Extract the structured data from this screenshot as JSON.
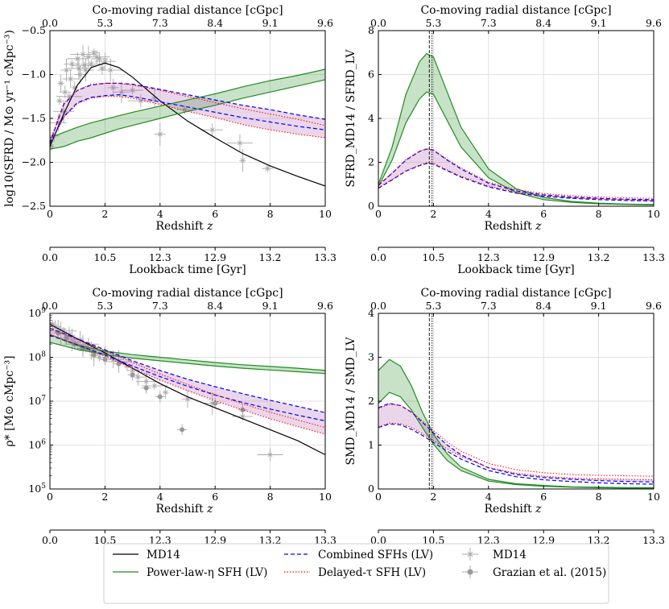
{
  "axes_common": {
    "top_label": "Co-moving radial distance [cGpc]",
    "top_ticks": [
      "0.0",
      "5.3",
      "7.3",
      "8.4",
      "9.1",
      "9.6"
    ],
    "xlabel": "Redshift z",
    "bottom_label": "Lookback time [Gyr]",
    "bottom_ticks": [
      "0.0",
      "10.5",
      "12.3",
      "12.9",
      "13.2",
      "13.3"
    ],
    "x_ticks": [
      "0",
      "2",
      "4",
      "6",
      "8",
      "10"
    ]
  },
  "legend": {
    "items": [
      {
        "label": "MD14",
        "style": "line",
        "color": "#000000"
      },
      {
        "label": "Power-law-η SFH (LV)",
        "style": "line",
        "color": "#228b22"
      },
      {
        "label": "Combined SFHs (LV)",
        "style": "dashed",
        "color": "#0000ff"
      },
      {
        "label": "Delayed-τ SFH (LV)",
        "style": "dotted",
        "color": "#ff0000"
      },
      {
        "label": "MD14",
        "style": "errorbar-x",
        "color": "#aaaaaa"
      },
      {
        "label": "Grazian et al. (2015)",
        "style": "errorbar-dot",
        "color": "#aaaaaa"
      }
    ]
  },
  "chart_data": [
    {
      "id": "sfrd",
      "type": "line",
      "ylabel": "log10(SFRD / M⊙ yr⁻¹ cMpc⁻³)",
      "xlim": [
        0,
        10
      ],
      "ylim": [
        -2.5,
        -0.5
      ],
      "y_ticks": [
        "−2.5",
        "−2.0",
        "−1.5",
        "−1.0",
        "−0.5"
      ],
      "x": [
        0,
        0.5,
        1,
        1.5,
        2,
        2.5,
        3,
        4,
        5,
        6,
        7,
        8,
        9,
        10
      ],
      "series": [
        {
          "name": "MD14",
          "values": [
            -1.82,
            -1.45,
            -1.12,
            -0.92,
            -0.87,
            -0.92,
            -1.03,
            -1.3,
            -1.53,
            -1.72,
            -1.9,
            -2.04,
            -2.16,
            -2.27
          ]
        },
        {
          "name": "Power-law-η upper",
          "values": [
            -1.72,
            -1.66,
            -1.6,
            -1.55,
            -1.51,
            -1.47,
            -1.43,
            -1.36,
            -1.29,
            -1.22,
            -1.14,
            -1.07,
            -1.01,
            -0.94
          ]
        },
        {
          "name": "Power-law-η lower",
          "values": [
            -1.85,
            -1.82,
            -1.76,
            -1.72,
            -1.67,
            -1.62,
            -1.58,
            -1.5,
            -1.42,
            -1.35,
            -1.27,
            -1.2,
            -1.13,
            -1.06
          ]
        },
        {
          "name": "Combined upper",
          "values": [
            -1.78,
            -1.34,
            -1.18,
            -1.12,
            -1.1,
            -1.1,
            -1.11,
            -1.17,
            -1.23,
            -1.29,
            -1.35,
            -1.4,
            -1.46,
            -1.51
          ]
        },
        {
          "name": "Combined lower",
          "values": [
            -1.79,
            -1.48,
            -1.32,
            -1.26,
            -1.24,
            -1.23,
            -1.25,
            -1.31,
            -1.37,
            -1.43,
            -1.49,
            -1.54,
            -1.59,
            -1.63
          ]
        },
        {
          "name": "Delayed-τ upper",
          "values": [
            -1.76,
            -1.33,
            -1.18,
            -1.11,
            -1.1,
            -1.1,
            -1.12,
            -1.18,
            -1.25,
            -1.32,
            -1.39,
            -1.45,
            -1.51,
            -1.58
          ]
        },
        {
          "name": "Delayed-τ lower",
          "values": [
            -1.8,
            -1.49,
            -1.33,
            -1.27,
            -1.25,
            -1.25,
            -1.27,
            -1.34,
            -1.42,
            -1.49,
            -1.57,
            -1.63,
            -1.68,
            -1.72
          ]
        }
      ],
      "observations_md14": [
        [
          0.05,
          -1.82
        ],
        [
          0.15,
          -1.7
        ],
        [
          0.3,
          -1.55
        ],
        [
          0.5,
          -1.42
        ],
        [
          0.7,
          -1.25
        ],
        [
          0.9,
          -1.15
        ],
        [
          1.1,
          -1.0
        ],
        [
          1.3,
          -0.95
        ],
        [
          1.5,
          -0.88
        ],
        [
          1.7,
          -0.8
        ],
        [
          0.4,
          -1.1
        ],
        [
          0.6,
          -0.95
        ],
        [
          0.8,
          -0.88
        ],
        [
          1.0,
          -0.82
        ],
        [
          1.2,
          -0.77
        ],
        [
          1.4,
          -0.8
        ],
        [
          1.6,
          -0.75
        ],
        [
          1.8,
          -0.82
        ],
        [
          2.0,
          -0.85
        ],
        [
          2.2,
          -0.95
        ],
        [
          0.35,
          -1.3
        ],
        [
          0.55,
          -1.2
        ],
        [
          0.75,
          -1.05
        ],
        [
          1.05,
          -0.93
        ],
        [
          1.25,
          -0.9
        ],
        [
          1.9,
          -0.93
        ],
        [
          2.3,
          -1.15
        ],
        [
          2.6,
          -1.2
        ],
        [
          3.0,
          -1.18
        ],
        [
          3.3,
          -1.3
        ],
        [
          3.8,
          -1.27
        ],
        [
          4.0,
          -1.68
        ],
        [
          4.9,
          -1.4
        ],
        [
          5.9,
          -1.63
        ],
        [
          6.9,
          -1.78
        ],
        [
          7.0,
          -1.98
        ],
        [
          7.9,
          -2.07
        ]
      ]
    },
    {
      "id": "sfrd-ratio",
      "type": "line",
      "ylabel": "SFRD_MD14 / SFRD_LV",
      "xlim": [
        0,
        10
      ],
      "ylim": [
        0,
        8
      ],
      "y_ticks": [
        "0",
        "2",
        "4",
        "6",
        "8"
      ],
      "vlines": [
        1.85,
        1.95
      ],
      "x": [
        0,
        0.5,
        1,
        1.5,
        1.75,
        2,
        2.5,
        3,
        4,
        5,
        6,
        7,
        8,
        9,
        10
      ],
      "series": [
        {
          "name": "Power-law-η upper",
          "values": [
            1.0,
            2.7,
            5.1,
            6.6,
            6.95,
            6.8,
            5.2,
            3.6,
            1.7,
            0.8,
            0.4,
            0.22,
            0.14,
            0.1,
            0.08
          ]
        },
        {
          "name": "Power-law-η lower",
          "values": [
            0.9,
            2.1,
            3.8,
            4.9,
            5.2,
            5.1,
            3.9,
            2.7,
            1.3,
            0.62,
            0.3,
            0.18,
            0.11,
            0.08,
            0.06
          ]
        },
        {
          "name": "Combined upper",
          "values": [
            0.95,
            1.5,
            2.1,
            2.5,
            2.6,
            2.55,
            2.1,
            1.7,
            1.05,
            0.7,
            0.52,
            0.42,
            0.36,
            0.32,
            0.3
          ]
        },
        {
          "name": "Combined lower",
          "values": [
            0.82,
            1.2,
            1.6,
            1.85,
            1.95,
            1.92,
            1.62,
            1.33,
            0.88,
            0.6,
            0.45,
            0.36,
            0.3,
            0.26,
            0.24
          ]
        },
        {
          "name": "Delayed-τ upper",
          "values": [
            0.97,
            1.52,
            2.12,
            2.52,
            2.62,
            2.57,
            2.14,
            1.75,
            1.1,
            0.76,
            0.58,
            0.48,
            0.42,
            0.38,
            0.36
          ]
        },
        {
          "name": "Delayed-τ lower",
          "values": [
            0.85,
            1.22,
            1.62,
            1.88,
            1.98,
            1.95,
            1.65,
            1.37,
            0.92,
            0.64,
            0.48,
            0.39,
            0.33,
            0.29,
            0.27
          ]
        }
      ]
    },
    {
      "id": "smd",
      "type": "line",
      "ylabel": "ρ* [M⊙ cMpc⁻³]",
      "yscale": "log",
      "xlim": [
        0,
        10
      ],
      "ylim": [
        5,
        9
      ],
      "y_ticks": [
        "10^5",
        "10^6",
        "10^7",
        "10^8",
        "10^9"
      ],
      "x": [
        0,
        1,
        2,
        3,
        4,
        5,
        6,
        7,
        8,
        9,
        10
      ],
      "series": [
        {
          "name": "MD14",
          "values": [
            8.75,
            8.42,
            8.1,
            7.75,
            7.4,
            7.1,
            6.85,
            6.6,
            6.35,
            6.1,
            5.78
          ]
        },
        {
          "name": "Power-law-η upper",
          "values": [
            8.52,
            8.28,
            8.14,
            8.06,
            8.0,
            7.94,
            7.88,
            7.83,
            7.79,
            7.75,
            7.7
          ]
        },
        {
          "name": "Power-law-η lower",
          "values": [
            8.34,
            8.18,
            8.06,
            7.98,
            7.92,
            7.86,
            7.8,
            7.75,
            7.71,
            7.67,
            7.63
          ]
        },
        {
          "name": "Combined upper",
          "values": [
            8.66,
            8.42,
            8.17,
            7.92,
            7.7,
            7.5,
            7.33,
            7.17,
            7.02,
            6.88,
            6.74
          ]
        },
        {
          "name": "Combined lower",
          "values": [
            8.5,
            8.28,
            8.05,
            7.8,
            7.56,
            7.34,
            7.14,
            6.97,
            6.82,
            6.68,
            6.55
          ]
        },
        {
          "name": "Delayed-τ upper",
          "values": [
            8.65,
            8.41,
            8.15,
            7.88,
            7.62,
            7.38,
            7.15,
            6.94,
            6.75,
            6.57,
            6.4
          ]
        },
        {
          "name": "Delayed-τ lower",
          "values": [
            8.52,
            8.27,
            8.02,
            7.75,
            7.48,
            7.24,
            7.01,
            6.8,
            6.6,
            6.42,
            6.25
          ]
        }
      ],
      "observations_md14": [
        [
          0.1,
          8.75
        ],
        [
          0.2,
          8.7
        ],
        [
          0.3,
          8.65
        ],
        [
          0.4,
          8.55
        ],
        [
          0.5,
          8.6
        ],
        [
          0.6,
          8.45
        ],
        [
          0.7,
          8.5
        ],
        [
          0.8,
          8.4
        ],
        [
          0.9,
          8.35
        ],
        [
          1.0,
          8.3
        ],
        [
          1.1,
          8.4
        ],
        [
          1.2,
          8.25
        ],
        [
          1.3,
          8.2
        ],
        [
          1.4,
          8.3
        ],
        [
          1.5,
          8.15
        ],
        [
          1.6,
          8.05
        ],
        [
          1.8,
          8.0
        ],
        [
          2.0,
          8.1
        ],
        [
          2.3,
          7.95
        ],
        [
          2.5,
          7.9
        ],
        [
          2.8,
          7.8
        ],
        [
          3.0,
          7.7
        ],
        [
          3.2,
          7.55
        ],
        [
          3.5,
          7.45
        ],
        [
          3.8,
          7.35
        ],
        [
          4.2,
          7.2
        ],
        [
          5.0,
          7.05
        ],
        [
          5.9,
          6.95
        ],
        [
          7.0,
          6.65
        ],
        [
          8.0,
          5.78
        ]
      ],
      "observations_grazian": [
        [
          0.3,
          8.55
        ],
        [
          0.6,
          8.45
        ],
        [
          0.9,
          8.3
        ],
        [
          1.2,
          8.2
        ],
        [
          1.6,
          8.05
        ],
        [
          2.0,
          7.95
        ],
        [
          2.5,
          7.85
        ],
        [
          3.0,
          7.6
        ],
        [
          3.5,
          7.3
        ],
        [
          4.0,
          7.1
        ],
        [
          4.8,
          6.35
        ],
        [
          6.0,
          6.95
        ],
        [
          7.0,
          6.8
        ]
      ]
    },
    {
      "id": "smd-ratio",
      "type": "line",
      "ylabel": "SMD_MD14 / SMD_LV",
      "xlim": [
        0,
        10
      ],
      "ylim": [
        0,
        4
      ],
      "y_ticks": [
        "0",
        "1",
        "2",
        "3",
        "4"
      ],
      "vlines": [
        1.85,
        1.95
      ],
      "x": [
        0,
        0.4,
        0.8,
        1.2,
        1.6,
        2,
        2.5,
        3,
        4,
        5,
        6,
        7,
        8,
        9,
        10
      ],
      "series": [
        {
          "name": "Power-law-η upper",
          "values": [
            2.7,
            2.95,
            2.8,
            2.35,
            1.75,
            1.25,
            0.8,
            0.5,
            0.22,
            0.12,
            0.08,
            0.05,
            0.04,
            0.03,
            0.03
          ]
        },
        {
          "name": "Power-law-η lower",
          "values": [
            1.95,
            2.2,
            2.1,
            1.8,
            1.4,
            1.02,
            0.65,
            0.42,
            0.18,
            0.1,
            0.06,
            0.04,
            0.03,
            0.02,
            0.02
          ]
        },
        {
          "name": "Combined upper",
          "values": [
            1.85,
            1.95,
            1.9,
            1.75,
            1.52,
            1.28,
            1.0,
            0.78,
            0.48,
            0.33,
            0.26,
            0.22,
            0.19,
            0.17,
            0.16
          ]
        },
        {
          "name": "Combined lower",
          "values": [
            1.4,
            1.48,
            1.46,
            1.36,
            1.22,
            1.06,
            0.86,
            0.68,
            0.42,
            0.28,
            0.21,
            0.17,
            0.14,
            0.12,
            0.11
          ]
        },
        {
          "name": "Delayed-τ upper",
          "values": [
            1.83,
            1.93,
            1.9,
            1.76,
            1.55,
            1.33,
            1.07,
            0.86,
            0.58,
            0.44,
            0.37,
            0.33,
            0.31,
            0.3,
            0.29
          ]
        },
        {
          "name": "Delayed-τ lower",
          "values": [
            1.42,
            1.5,
            1.49,
            1.4,
            1.26,
            1.1,
            0.91,
            0.74,
            0.49,
            0.36,
            0.29,
            0.25,
            0.23,
            0.22,
            0.21
          ]
        }
      ]
    }
  ]
}
